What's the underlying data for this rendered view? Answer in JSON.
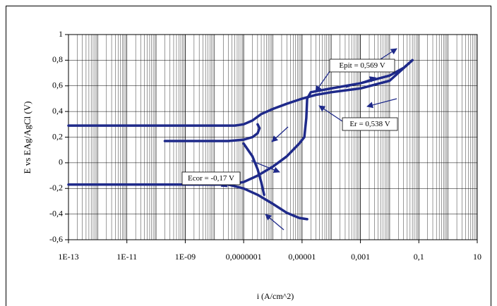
{
  "chart_data": {
    "type": "line",
    "x_scale": "log",
    "grid": true,
    "color": "#1f2a8a",
    "xlabel": "i (A/cm^2)",
    "ylabel": "E vs EAg/AgCl (V)",
    "xlim": [
      1e-13,
      10
    ],
    "ylim": [
      -0.6,
      1
    ],
    "xticks": [
      {
        "value": 1e-13,
        "label": "1E-13"
      },
      {
        "value": 1e-11,
        "label": "1E-11"
      },
      {
        "value": 1e-09,
        "label": "1E-09"
      },
      {
        "value": 1e-07,
        "label": "0,0000001"
      },
      {
        "value": 1e-05,
        "label": "0,00001"
      },
      {
        "value": 0.001,
        "label": "0,001"
      },
      {
        "value": 0.1,
        "label": "0,1"
      },
      10
    ],
    "yticks": [
      {
        "value": -0.6,
        "label": "-0,6"
      },
      {
        "value": -0.4,
        "label": "-0,4"
      },
      {
        "value": -0.2,
        "label": "-0,2"
      },
      0,
      {
        "value": 0.2,
        "label": "0,2"
      },
      {
        "value": 0.4,
        "label": "0,4"
      },
      {
        "value": 0.6,
        "label": "0,6"
      },
      {
        "value": 0.8,
        "label": "0,8"
      },
      1
    ],
    "series": [
      {
        "color": "#1f2a8a",
        "x": [
          3e-08,
          1e-07,
          3e-07,
          1e-06,
          3e-06,
          8e-06,
          1.2e-05,
          1.4e-05,
          1.5e-05,
          2e-05,
          0.0001,
          0.001,
          0.01,
          0.03,
          0.06
        ],
        "values": [
          -0.17,
          -0.15,
          -0.1,
          -0.03,
          0.05,
          0.15,
          0.2,
          0.35,
          0.5,
          0.55,
          0.58,
          0.62,
          0.68,
          0.74,
          0.8
        ]
      },
      {
        "color": "#1f2a8a",
        "x": [
          0.06,
          0.01,
          0.001,
          0.0001,
          3e-05,
          1e-05,
          3e-06,
          1e-06,
          4e-07,
          2e-07,
          1e-07,
          5e-08,
          1e-08,
          1e-13
        ],
        "values": [
          0.8,
          0.64,
          0.58,
          0.55,
          0.53,
          0.5,
          0.46,
          0.42,
          0.38,
          0.33,
          0.3,
          0.29,
          0.29,
          0.29
        ]
      },
      {
        "color": "#1f2a8a",
        "x": [
          2e-10,
          1e-08,
          3e-08,
          1e-07,
          2e-07,
          3e-07,
          3.5e-07,
          3e-07
        ],
        "values": [
          0.17,
          0.17,
          0.17,
          0.18,
          0.2,
          0.23,
          0.27,
          0.3
        ]
      },
      {
        "color": "#1f2a8a",
        "x": [
          1e-07,
          2e-07,
          3e-07,
          4e-07,
          5e-07
        ],
        "values": [
          0.15,
          0.05,
          -0.05,
          -0.15,
          -0.25
        ]
      },
      {
        "color": "#1f2a8a",
        "x": [
          3e-08,
          1e-07,
          3e-07,
          1e-06,
          3e-06,
          8e-06,
          1.5e-05
        ],
        "values": [
          -0.17,
          -0.2,
          -0.25,
          -0.32,
          -0.39,
          -0.43,
          -0.44
        ]
      },
      {
        "color": "#1f2a8a",
        "x": [
          1e-13,
          3e-08
        ],
        "values": [
          -0.17,
          -0.17
        ]
      }
    ],
    "annotations": [
      "Epit = 0,569 V",
      "Er = 0,538 V",
      "Ecor = -0,17 V"
    ]
  }
}
